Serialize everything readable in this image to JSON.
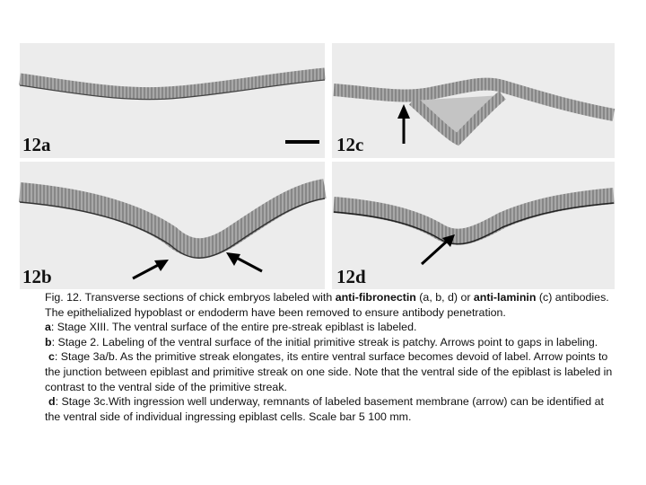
{
  "figure": {
    "panels": [
      {
        "label": "12a"
      },
      {
        "label": "12c"
      },
      {
        "label": "12b"
      },
      {
        "label": "12d"
      }
    ],
    "caption": {
      "paragraphs": [
        {
          "parts": [
            {
              "text": "Fig. 12. Transverse sections of chick embryos labeled with ",
              "bold": false
            },
            {
              "text": "anti-fibronectin",
              "bold": true
            },
            {
              "text": " (a, b, d) or ",
              "bold": false
            },
            {
              "text": "anti-laminin",
              "bold": true
            },
            {
              "text": " (c) antibodies. The epithelialized hypoblast or endoderm have been removed to ensure antibody penetration.",
              "bold": false
            }
          ]
        },
        {
          "parts": [
            {
              "text": "a",
              "bold": true
            },
            {
              "text": ": Stage XIII. The ventral surface of the entire pre-streak epiblast is labeled.",
              "bold": false
            }
          ]
        },
        {
          "parts": [
            {
              "text": "b",
              "bold": true
            },
            {
              "text": ": Stage 2. Labeling of the ventral surface of the initial primitive streak is patchy. Arrows point to gaps in labeling.",
              "bold": false
            }
          ]
        },
        {
          "parts": [
            {
              "text": "c",
              "bold": true
            },
            {
              "text": ": Stage 3a/b. As the primitive streak elongates, its entire ventral surface becomes devoid of label. Arrow points to the junction between epiblast and primitive streak on one side. Note that the ventral side of the epiblast is labeled in contrast to the ventral side of the primitive streak.",
              "bold": false
            }
          ]
        },
        {
          "parts": [
            {
              "text": "d",
              "bold": true
            },
            {
              "text": ": Stage 3c.With ingression well underway, remnants of labeled basement membrane (arrow) can be identified at the ventral side of individual ingressing epiblast cells. Scale bar 5 100 mm.",
              "bold": false
            }
          ]
        }
      ]
    }
  }
}
